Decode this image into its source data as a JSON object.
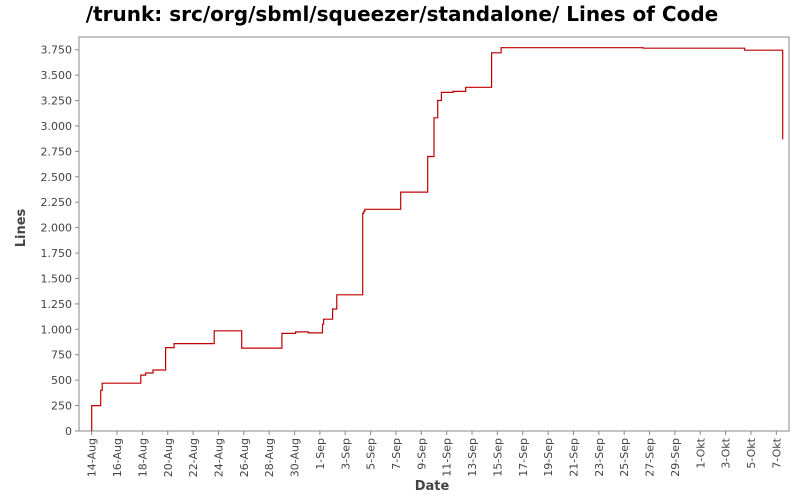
{
  "chart_data": {
    "type": "line",
    "title": "/trunk: src/org/sbml/squeezer/standalone/ Lines of Code",
    "xlabel": "Date",
    "ylabel": "Lines",
    "ylim": [
      0,
      3875
    ],
    "yticks": [
      0,
      250,
      500,
      750,
      1000,
      1250,
      1500,
      1750,
      2000,
      2250,
      2500,
      2750,
      3000,
      3250,
      3500,
      3750
    ],
    "ytick_labels": [
      "0",
      "250",
      "500",
      "750",
      "1.000",
      "1.250",
      "1.500",
      "1.750",
      "2.000",
      "2.250",
      "2.500",
      "2.750",
      "3.000",
      "3.250",
      "3.500",
      "3.750"
    ],
    "xlim": [
      "2012-08-13",
      "2012-10-08"
    ],
    "xticks": [
      "2012-08-14",
      "2012-08-16",
      "2012-08-18",
      "2012-08-20",
      "2012-08-22",
      "2012-08-24",
      "2012-08-26",
      "2012-08-28",
      "2012-08-30",
      "2012-09-01",
      "2012-09-03",
      "2012-09-05",
      "2012-09-07",
      "2012-09-09",
      "2012-09-11",
      "2012-09-13",
      "2012-09-15",
      "2012-09-17",
      "2012-09-19",
      "2012-09-21",
      "2012-09-23",
      "2012-09-25",
      "2012-09-27",
      "2012-09-29",
      "2012-10-01",
      "2012-10-03",
      "2012-10-05",
      "2012-10-07"
    ],
    "xtick_labels": [
      "14-Aug",
      "16-Aug",
      "18-Aug",
      "20-Aug",
      "22-Aug",
      "24-Aug",
      "26-Aug",
      "28-Aug",
      "30-Aug",
      "1-Sep",
      "3-Sep",
      "5-Sep",
      "7-Sep",
      "9-Sep",
      "11-Sep",
      "13-Sep",
      "15-Sep",
      "17-Sep",
      "19-Sep",
      "21-Sep",
      "23-Sep",
      "25-Sep",
      "27-Sep",
      "29-Sep",
      "1-Okt",
      "3-Okt",
      "5-Okt",
      "7-Okt"
    ],
    "grid": false,
    "series_color": "#c00000",
    "series": [
      {
        "style": "step",
        "points": [
          [
            "2012-08-14 00:00",
            0
          ],
          [
            "2012-08-14 00:00",
            250
          ],
          [
            "2012-08-14 17:00",
            400
          ],
          [
            "2012-08-14 20:00",
            470
          ],
          [
            "2012-08-17 21:00",
            550
          ],
          [
            "2012-08-18 06:00",
            570
          ],
          [
            "2012-08-18 20:00",
            600
          ],
          [
            "2012-08-19 20:00",
            820
          ],
          [
            "2012-08-20 12:00",
            860
          ],
          [
            "2012-08-23 16:00",
            985
          ],
          [
            "2012-08-25 20:00",
            815
          ],
          [
            "2012-08-29 00:00",
            960
          ],
          [
            "2012-08-30 02:00",
            975
          ],
          [
            "2012-08-31 02:00",
            965
          ],
          [
            "2012-09-01 05:00",
            1050
          ],
          [
            "2012-09-01 07:00",
            1100
          ],
          [
            "2012-09-02 00:00",
            1200
          ],
          [
            "2012-09-02 08:00",
            1340
          ],
          [
            "2012-09-04 09:00",
            2140
          ],
          [
            "2012-09-04 11:00",
            2160
          ],
          [
            "2012-09-04 13:00",
            2180
          ],
          [
            "2012-09-07 09:00",
            2350
          ],
          [
            "2012-09-09 12:00",
            2700
          ],
          [
            "2012-09-10 00:00",
            3080
          ],
          [
            "2012-09-10 07:00",
            3250
          ],
          [
            "2012-09-10 14:00",
            3330
          ],
          [
            "2012-09-11 12:00",
            3340
          ],
          [
            "2012-09-12 12:00",
            3380
          ],
          [
            "2012-09-14 13:00",
            3720
          ],
          [
            "2012-09-15 07:00",
            3770
          ],
          [
            "2012-09-26 12:00",
            3765
          ],
          [
            "2012-10-04 12:00",
            3745
          ],
          [
            "2012-10-07 12:00",
            2870
          ]
        ]
      }
    ]
  }
}
